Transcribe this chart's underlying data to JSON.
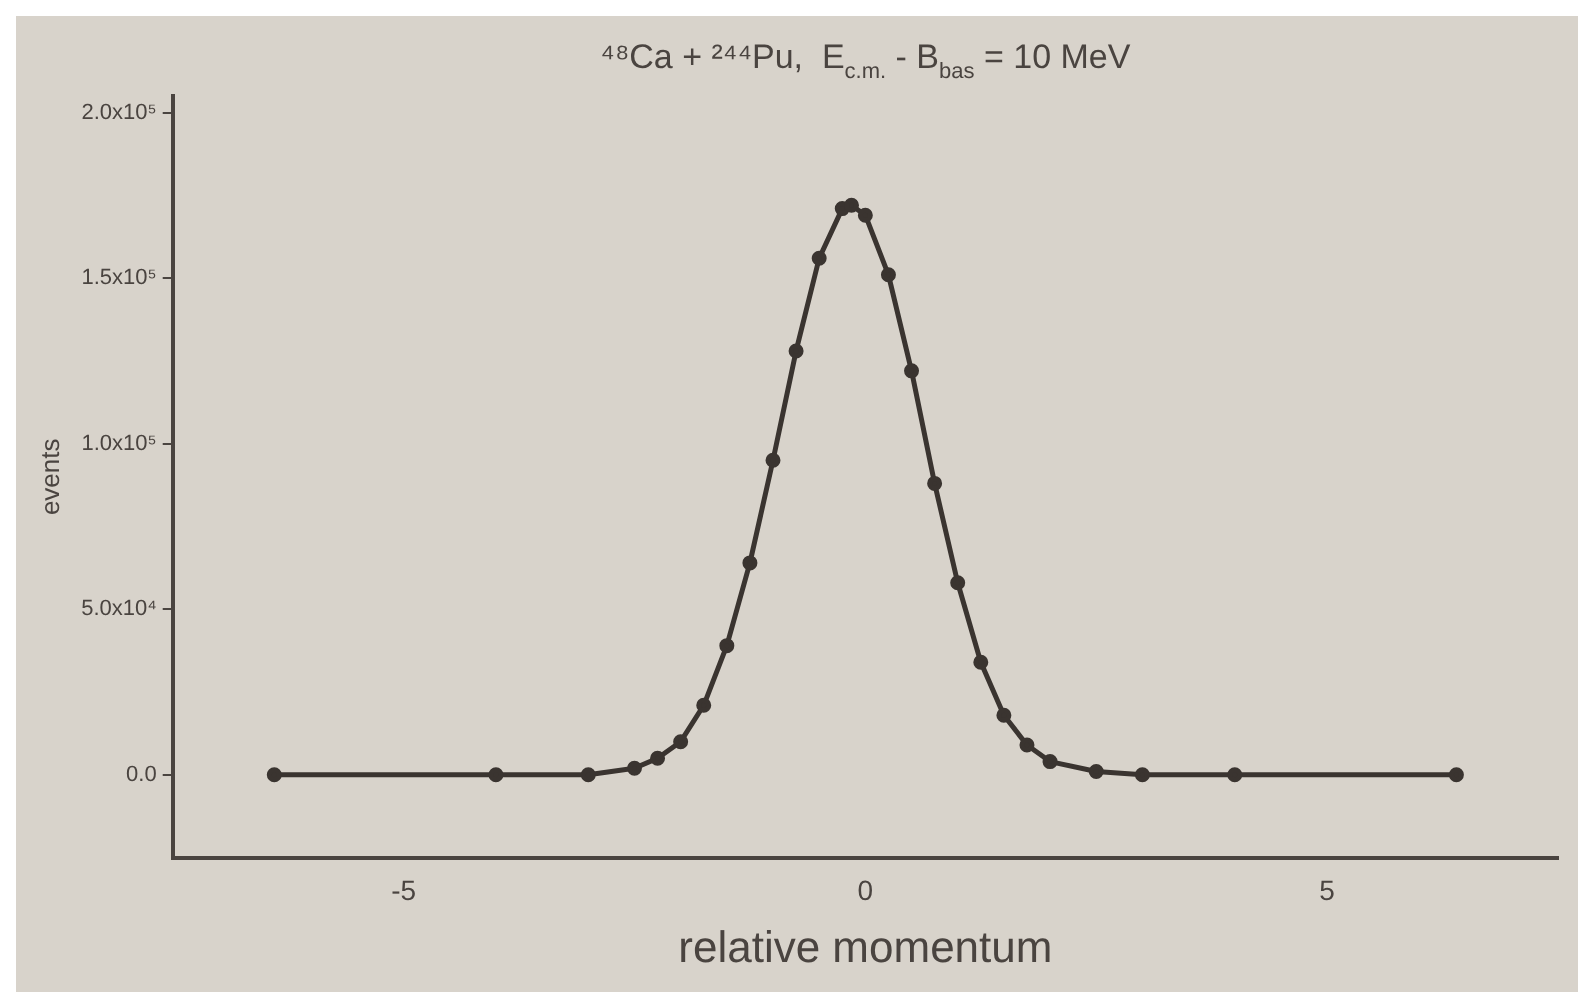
{
  "chart_data": {
    "type": "line",
    "title": "⁴⁸Ca + ²⁴⁴Pu,  E$_{c.m.}$ - B$_{bas}$ = 10 MeV",
    "xlabel": "relative momentum",
    "ylabel": "events",
    "x": [
      -6.4,
      -4,
      -3,
      -2.5,
      -2.25,
      -2,
      -1.75,
      -1.5,
      -1.25,
      -1,
      -0.75,
      -0.5,
      -0.25,
      -0.15,
      0,
      0.25,
      0.5,
      0.75,
      1,
      1.25,
      1.5,
      1.75,
      2,
      2.5,
      3,
      4,
      6.4
    ],
    "series": [
      {
        "color": "#3a3430",
        "values": [
          0,
          0,
          0,
          2000,
          5000,
          10000,
          21000,
          39000,
          64000,
          95000,
          128000,
          156000,
          171000,
          172000,
          169000,
          151000,
          122000,
          88000,
          58000,
          34000,
          18000,
          9000,
          4000,
          1000,
          0,
          0,
          0
        ]
      }
    ],
    "xlim": [
      -7.5,
      7.5
    ],
    "xticks": [
      -5,
      0,
      5
    ],
    "ylim": [
      -25000,
      205000
    ],
    "yticks": [
      {
        "value": 0,
        "label": "0.0"
      },
      {
        "value": 50000,
        "label": "5.0x10⁴"
      },
      {
        "value": 100000,
        "label": "1.0x10⁵"
      },
      {
        "value": 150000,
        "label": "1.5x10⁵"
      },
      {
        "value": 200000,
        "label": "2.0x10⁵"
      }
    ],
    "grid": false,
    "legend": false,
    "marker": "circle",
    "line_style": "solid"
  }
}
